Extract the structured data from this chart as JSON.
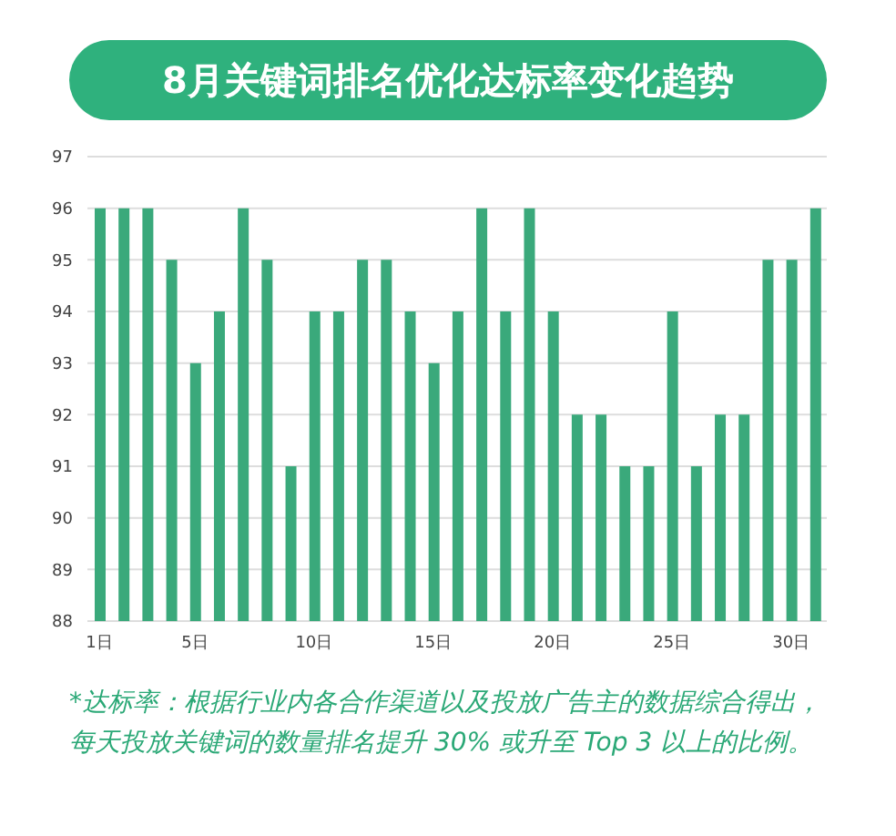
{
  "chart_data": {
    "type": "bar",
    "title": "8月关键词排名优化达标率变化趋势",
    "categories": [
      "1日",
      null,
      null,
      null,
      "5日",
      null,
      null,
      null,
      null,
      "10日",
      null,
      null,
      null,
      null,
      "15日",
      null,
      null,
      null,
      null,
      "20日",
      null,
      null,
      null,
      null,
      "25日",
      null,
      null,
      null,
      null,
      "30日",
      null
    ],
    "values": [
      96,
      96,
      96,
      95,
      93,
      94,
      96,
      95,
      91,
      94,
      94,
      95,
      95,
      94,
      93,
      94,
      96,
      94,
      96,
      94,
      92,
      92,
      91,
      91,
      94,
      91,
      92,
      92,
      95,
      95,
      96
    ],
    "color": "#3aa97b",
    "ylim": [
      88,
      97
    ],
    "yticks": [
      88,
      89,
      90,
      91,
      92,
      93,
      94,
      95,
      96,
      97
    ],
    "grid": "y",
    "annotations": [
      "*达标率：根据行业内各合作渠道以及投放广告主的数据综合得出，每天投放关键词的数量排名提升 30% 或升至 Top 3 以上的比例。"
    ]
  }
}
